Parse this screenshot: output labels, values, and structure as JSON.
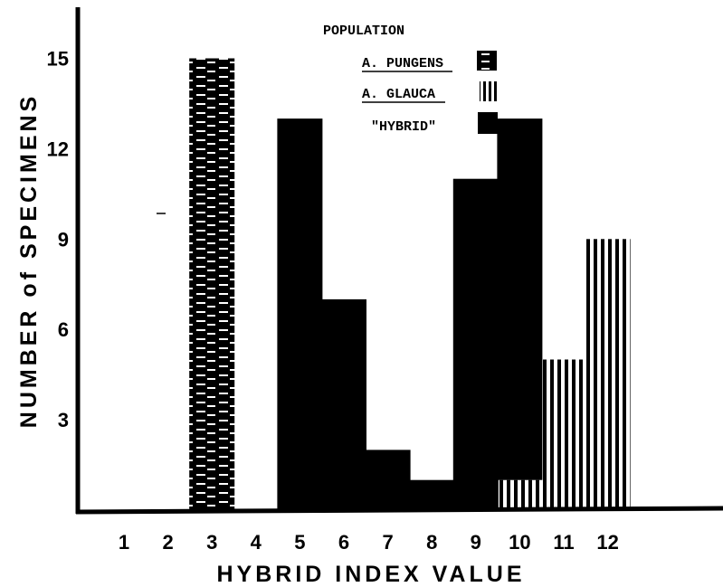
{
  "chart_data": {
    "type": "bar",
    "title": "",
    "xlabel": "HYBRID INDEX VALUE",
    "ylabel": "NUMBER of SPECIMENS",
    "categories": [
      "1",
      "2",
      "3",
      "4",
      "5",
      "6",
      "7",
      "8",
      "9",
      "10",
      "11",
      "12"
    ],
    "yticks": [
      "3",
      "6",
      "9",
      "12",
      "15"
    ],
    "ylim": [
      0,
      16.5
    ],
    "stacked": true,
    "legend": {
      "title": "POPULATION",
      "placement": "top-center"
    },
    "series": [
      {
        "name": "A. PUNGENS",
        "pattern": "checker",
        "values": [
          0,
          0,
          15,
          0,
          0,
          0,
          0,
          0,
          0,
          0,
          0,
          0
        ]
      },
      {
        "name": "A. GLAUCA",
        "pattern": "vertical-stripes",
        "values": [
          0,
          0,
          0,
          0,
          0,
          0,
          0,
          0,
          0,
          1,
          5,
          9
        ]
      },
      {
        "name": "\"HYBRID\"",
        "pattern": "solid",
        "values": [
          0,
          0,
          0,
          0,
          13,
          7,
          2,
          1,
          11,
          12,
          0,
          0
        ]
      }
    ],
    "grid": false,
    "colors": {
      "ink": "#000000",
      "paper": "#ffffff"
    }
  }
}
